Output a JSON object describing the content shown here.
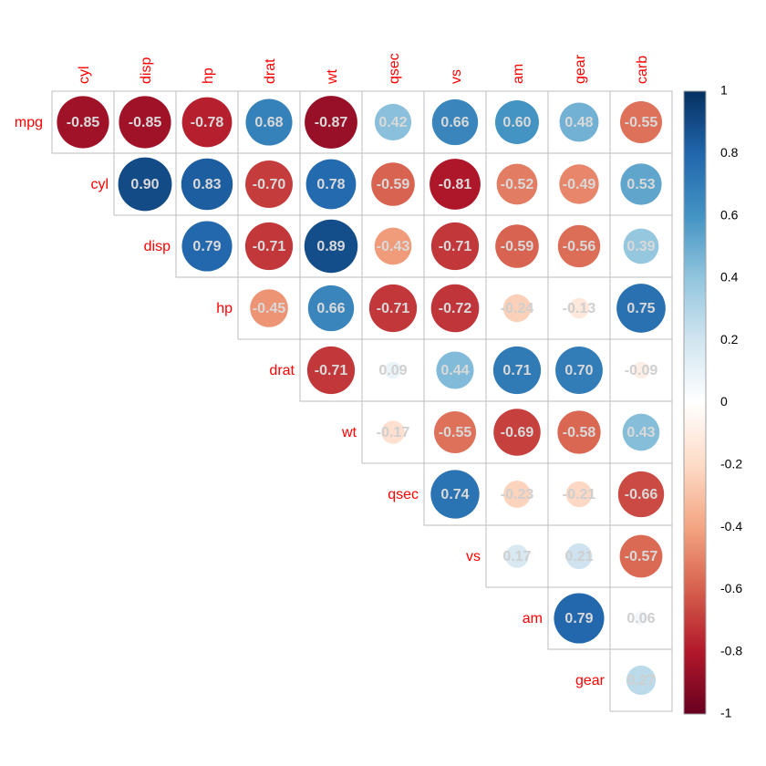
{
  "chart_data": {
    "type": "heatmap",
    "variables": [
      "mpg",
      "cyl",
      "disp",
      "hp",
      "drat",
      "wt",
      "qsec",
      "vs",
      "am",
      "gear",
      "carb"
    ],
    "column_labels": [
      "cyl",
      "disp",
      "hp",
      "drat",
      "wt",
      "qsec",
      "vs",
      "am",
      "gear",
      "carb"
    ],
    "row_labels": [
      "mpg",
      "cyl",
      "disp",
      "hp",
      "drat",
      "wt",
      "qsec",
      "vs",
      "am",
      "gear"
    ],
    "matrix": [
      [
        -0.85,
        -0.85,
        -0.78,
        0.68,
        -0.87,
        0.42,
        0.66,
        0.6,
        0.48,
        -0.55
      ],
      [
        0.9,
        0.83,
        -0.7,
        0.78,
        -0.59,
        -0.81,
        -0.52,
        -0.49,
        0.53
      ],
      [
        0.79,
        -0.71,
        0.89,
        -0.43,
        -0.71,
        -0.59,
        -0.56,
        0.39
      ],
      [
        -0.45,
        0.66,
        -0.71,
        -0.72,
        -0.24,
        -0.13,
        0.75
      ],
      [
        -0.71,
        0.09,
        0.44,
        0.71,
        0.7,
        -0.09
      ],
      [
        -0.17,
        -0.55,
        -0.69,
        -0.58,
        0.43
      ],
      [
        0.74,
        -0.23,
        -0.21,
        -0.66
      ],
      [
        0.17,
        0.21,
        -0.57
      ],
      [
        0.79,
        0.06
      ],
      [
        0.27
      ]
    ],
    "value_labels": [
      [
        "-0.85",
        "-0.85",
        "-0.78",
        "0.68",
        "-0.87",
        "0.42",
        "0.66",
        "0.60",
        "0.48",
        "-0.55"
      ],
      [
        "0.90",
        "0.83",
        "-0.70",
        "0.78",
        "-0.59",
        "-0.81",
        "-0.52",
        "-0.49",
        "0.53"
      ],
      [
        "0.79",
        "-0.71",
        "0.89",
        "-0.43",
        "-0.71",
        "-0.59",
        "-0.56",
        "0.39"
      ],
      [
        "-0.45",
        "0.66",
        "-0.71",
        "-0.72",
        "-0.24",
        "-0.13",
        "0.75"
      ],
      [
        "-0.71",
        "0.09",
        "0.44",
        "0.71",
        "0.70",
        "-0.09"
      ],
      [
        "-0.17",
        "-0.55",
        "-0.69",
        "-0.58",
        "0.43"
      ],
      [
        "0.74",
        "-0.23",
        "-0.21",
        "-0.66"
      ],
      [
        "0.17",
        "0.21",
        "-0.57"
      ],
      [
        "0.79",
        "0.06"
      ],
      [
        "0.27"
      ]
    ],
    "colorbar": {
      "range": [
        -1,
        1
      ],
      "tick_labels": [
        "1",
        "0.8",
        "0.6",
        "0.4",
        "0.2",
        "0",
        "-0.2",
        "-0.4",
        "-0.6",
        "-0.8",
        "-1"
      ],
      "palette": [
        "#67001f",
        "#b2182b",
        "#d6604d",
        "#f4a582",
        "#fddbc7",
        "#ffffff",
        "#d1e5f0",
        "#92c5de",
        "#4393c3",
        "#2166ac",
        "#053061"
      ]
    },
    "colors": {
      "label_color": "#ff0000",
      "grid_color": "#bdbdbd",
      "value_text_strong": "#d9d9d9",
      "value_text_light": "#cfcfcf"
    }
  }
}
